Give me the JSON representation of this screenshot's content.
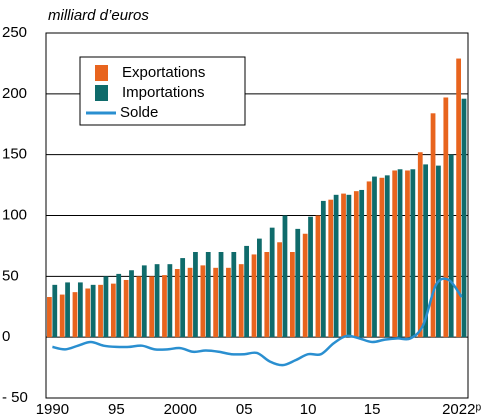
{
  "chart_data": {
    "type": "bar",
    "y_label": "milliard d’euros",
    "categories": [
      "1990",
      null,
      null,
      null,
      null,
      "95",
      null,
      null,
      null,
      null,
      "2000",
      null,
      null,
      null,
      null,
      "05",
      null,
      null,
      null,
      null,
      "10",
      null,
      null,
      null,
      null,
      "15",
      null,
      null,
      null,
      null,
      null,
      null,
      "2022ᵖ"
    ],
    "series": [
      {
        "name": "Exportations",
        "type": "bar",
        "color": "#e8641e",
        "values": [
          33,
          35,
          37,
          40,
          43,
          44,
          47,
          50,
          50,
          51,
          56,
          57,
          59,
          57,
          57,
          60,
          68,
          70,
          78,
          70,
          85,
          100,
          113,
          118,
          120,
          128,
          131,
          137,
          137,
          152,
          184,
          197,
          229
        ]
      },
      {
        "name": "Importations",
        "type": "bar",
        "color": "#0f6b6b",
        "values": [
          43,
          45,
          45,
          43,
          50,
          52,
          55,
          59,
          60,
          60,
          65,
          70,
          70,
          70,
          70,
          75,
          81,
          90,
          100,
          89,
          99,
          112,
          117,
          117,
          121,
          132,
          133,
          138,
          138,
          142,
          141,
          150,
          196
        ]
      },
      {
        "name": "Solde",
        "type": "line",
        "color": "#2a8fd0",
        "values": [
          -8,
          -10,
          -7,
          -4,
          -7,
          -8,
          -8,
          -7,
          -10,
          -10,
          -9,
          -12,
          -11,
          -12,
          -14,
          -14,
          -13,
          -20,
          -23,
          -19,
          -14,
          -14,
          -5,
          1,
          -1,
          -4,
          -2,
          -1,
          -1,
          10,
          43,
          47,
          33
        ]
      }
    ],
    "ylim": [
      -50,
      250
    ],
    "yticks": [
      {
        "value": -50,
        "label": "- 50"
      },
      0,
      50,
      100,
      150,
      200,
      250
    ],
    "grid": true,
    "legend": "upper left"
  }
}
